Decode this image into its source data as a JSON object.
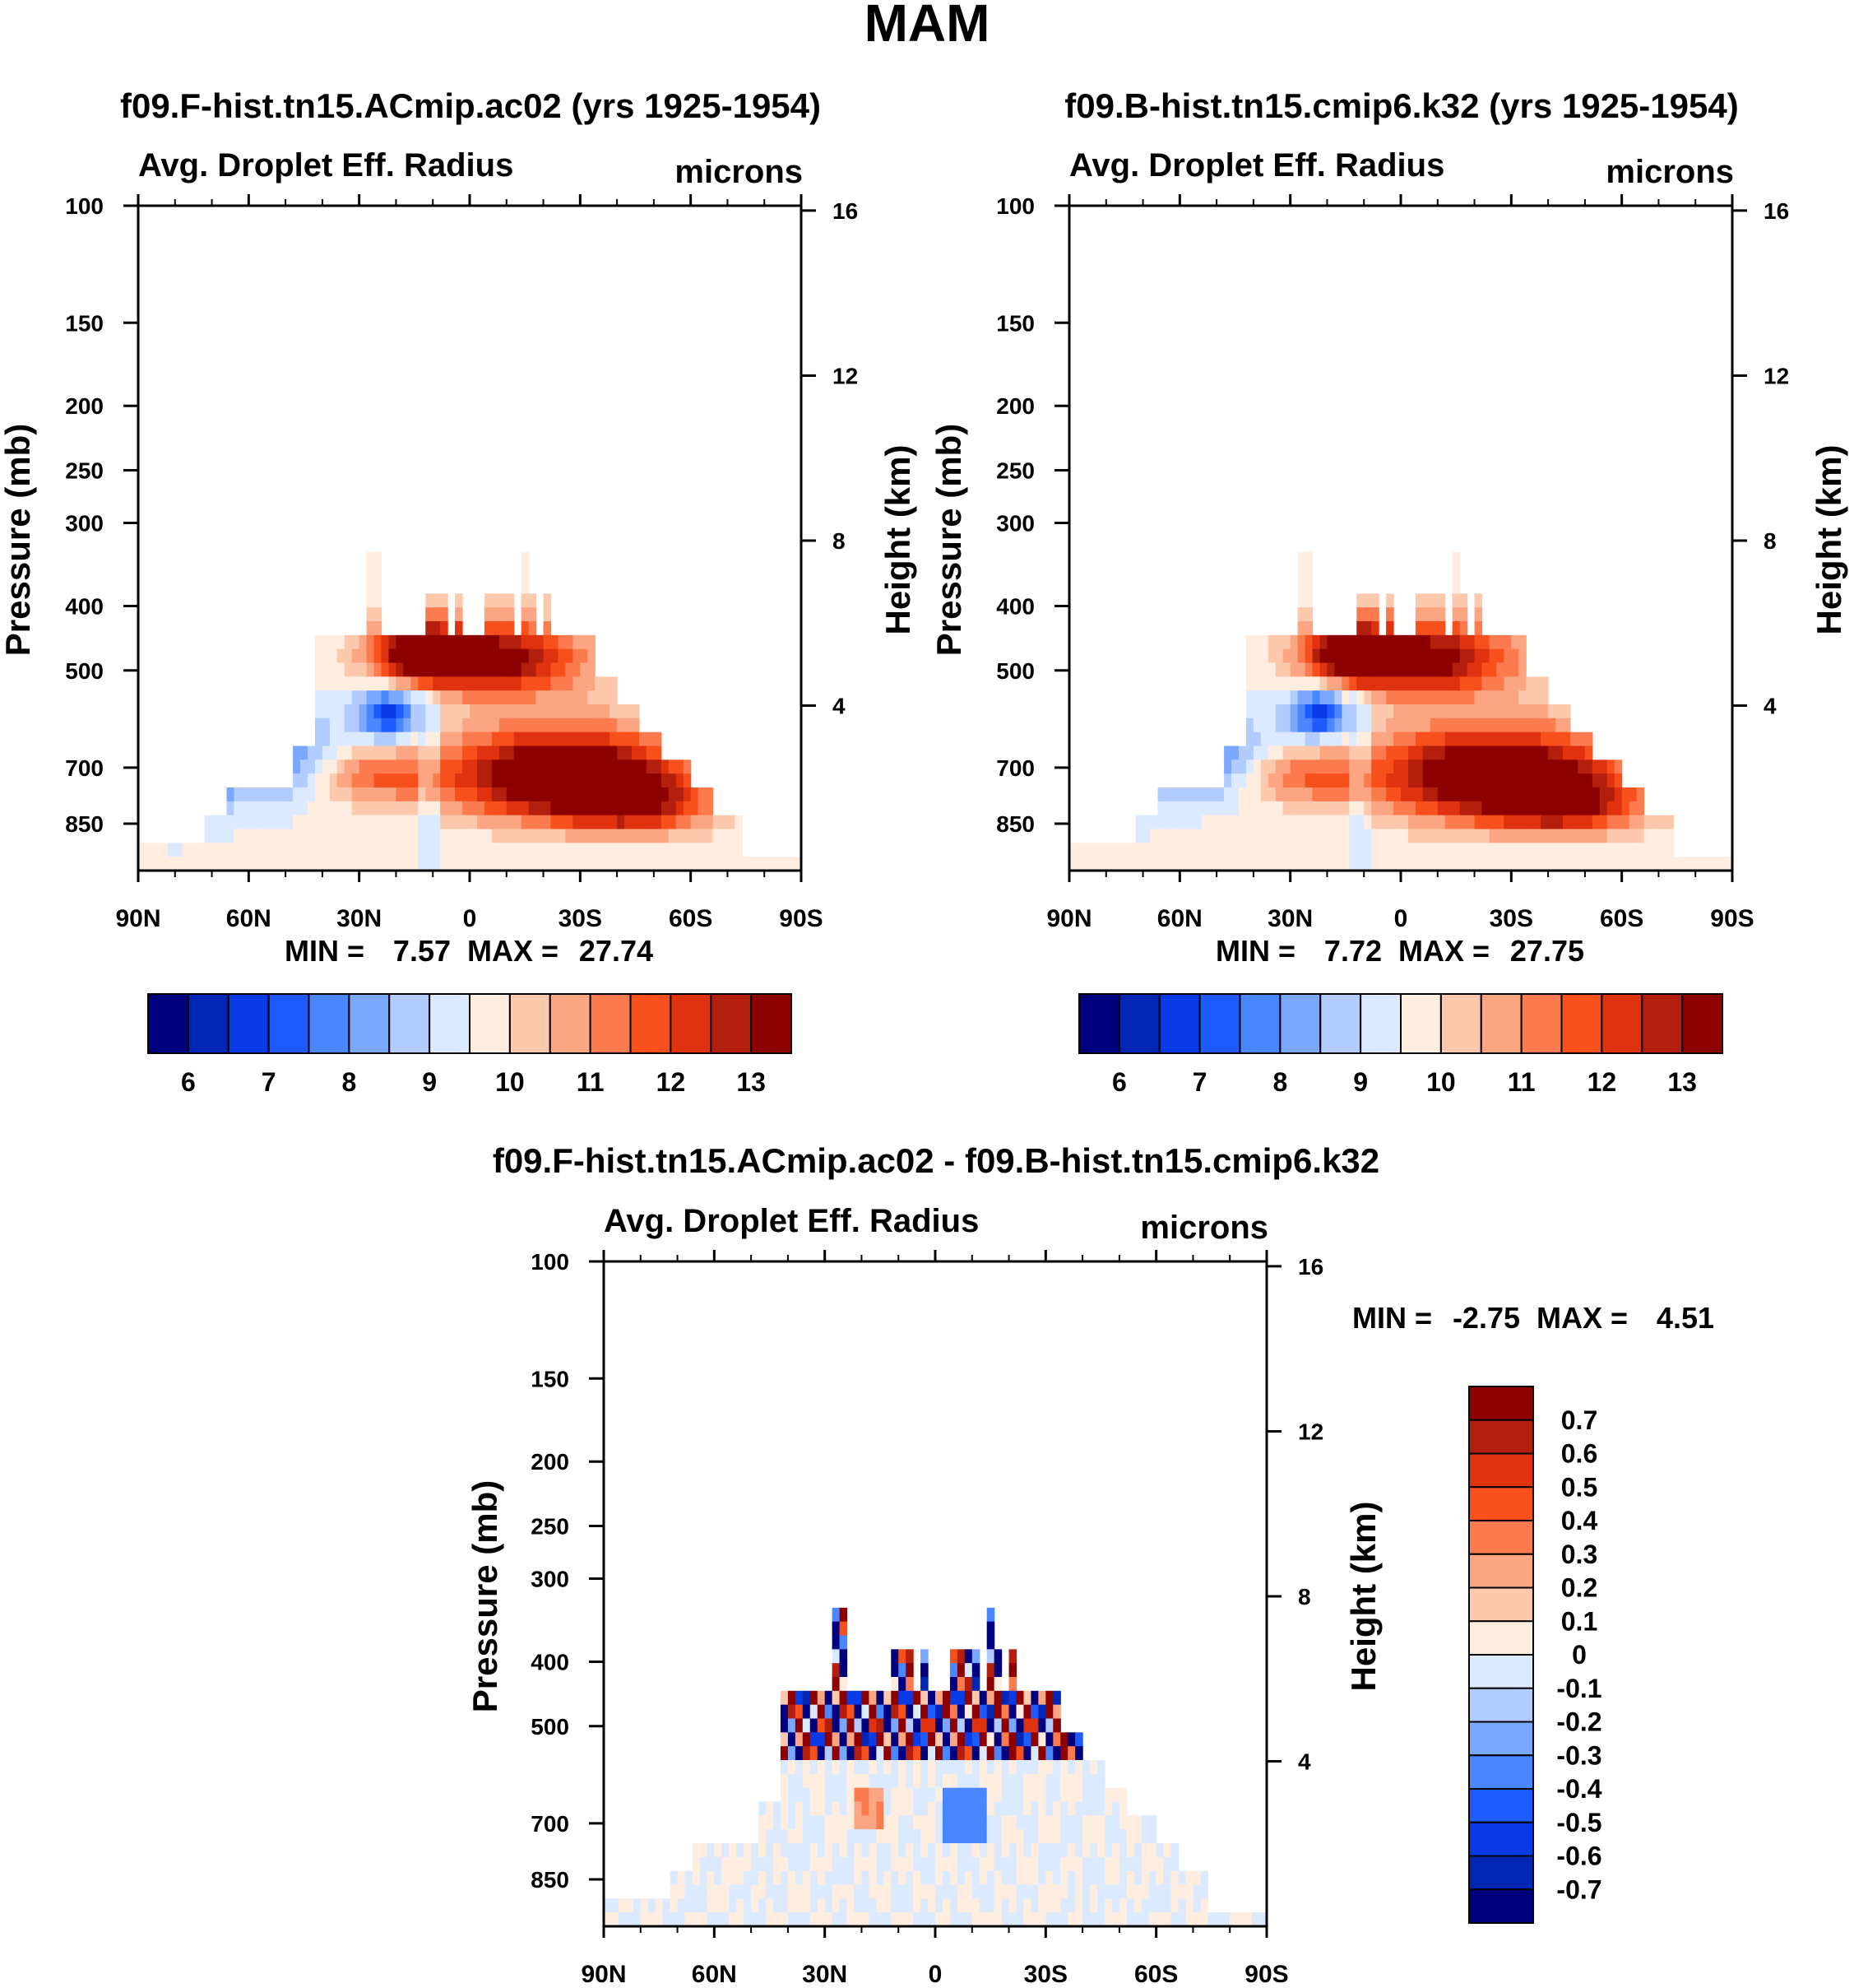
{
  "figure_title": "MAM",
  "colors": {
    "main_palette": [
      "#00007f",
      "#0026b3",
      "#0a3ae6",
      "#1f5aff",
      "#4a86ff",
      "#7ba8ff",
      "#b2ccff",
      "#dbeaff",
      "#ffeee0",
      "#fdc9ad",
      "#fca582",
      "#fb7b4e",
      "#f7501d",
      "#e0320e",
      "#b41e0c",
      "#8c0000"
    ],
    "diff_palette": [
      "#00007f",
      "#0026b3",
      "#0a3ae6",
      "#1f5aff",
      "#4a86ff",
      "#7ba8ff",
      "#b2ccff",
      "#dbeaff",
      "#ffeee0",
      "#fdc9ad",
      "#fca582",
      "#fb7b4e",
      "#f7501d",
      "#e0320e",
      "#b41e0c",
      "#8c0000"
    ],
    "empty_field": "#ffffff"
  },
  "chart_data": [
    {
      "type": "heatmap",
      "panel_title": "f09.F-hist.tn15.ACmip.ac02 (yrs 1925-1954)",
      "left_string": "Avg. Droplet Eff. Radius",
      "right_string": "microns",
      "ylabel": "Pressure (mb)",
      "ylabel_right": "Height (km)",
      "x_ticks": [
        "90N",
        "60N",
        "30N",
        "0",
        "30S",
        "60S",
        "90S"
      ],
      "y_ticks": [
        "100",
        "150",
        "200",
        "250",
        "300",
        "400",
        "500",
        "700",
        "850"
      ],
      "y_right_ticks": [
        "16",
        "12",
        "8",
        "4"
      ],
      "xlim": [
        90,
        -90
      ],
      "ylim_mb": [
        100,
        1000
      ],
      "stats": {
        "min_label": "MIN =",
        "min": "7.57",
        "max_label": "MAX =",
        "max": "27.74"
      },
      "colorbar_labels": [
        "6",
        "7",
        "8",
        "9",
        "10",
        "11",
        "12",
        "13"
      ],
      "colorbar_levels": [
        5.5,
        6,
        6.5,
        7,
        7.5,
        8,
        8.5,
        9,
        9.5,
        10,
        10.5,
        11,
        11.5,
        12,
        12.5,
        13,
        13.5
      ]
    },
    {
      "type": "heatmap",
      "panel_title": "f09.B-hist.tn15.cmip6.k32 (yrs 1925-1954)",
      "left_string": "Avg. Droplet Eff. Radius",
      "right_string": "microns",
      "ylabel": "Pressure (mb)",
      "ylabel_right": "Height (km)",
      "x_ticks": [
        "90N",
        "60N",
        "30N",
        "0",
        "30S",
        "60S",
        "90S"
      ],
      "y_ticks": [
        "100",
        "150",
        "200",
        "250",
        "300",
        "400",
        "500",
        "700",
        "850"
      ],
      "y_right_ticks": [
        "16",
        "12",
        "8",
        "4"
      ],
      "xlim": [
        90,
        -90
      ],
      "ylim_mb": [
        100,
        1000
      ],
      "stats": {
        "min_label": "MIN =",
        "min": "7.72",
        "max_label": "MAX =",
        "max": "27.75"
      },
      "colorbar_labels": [
        "6",
        "7",
        "8",
        "9",
        "10",
        "11",
        "12",
        "13"
      ],
      "colorbar_levels": [
        5.5,
        6,
        6.5,
        7,
        7.5,
        8,
        8.5,
        9,
        9.5,
        10,
        10.5,
        11,
        11.5,
        12,
        12.5,
        13,
        13.5
      ]
    },
    {
      "type": "heatmap",
      "panel_title": "f09.F-hist.tn15.ACmip.ac02 - f09.B-hist.tn15.cmip6.k32",
      "left_string": "Avg. Droplet Eff. Radius",
      "right_string": "microns",
      "ylabel": "Pressure (mb)",
      "ylabel_right": "Height (km)",
      "x_ticks": [
        "90N",
        "60N",
        "30N",
        "0",
        "30S",
        "60S",
        "90S"
      ],
      "y_ticks": [
        "100",
        "150",
        "200",
        "250",
        "300",
        "400",
        "500",
        "700",
        "850"
      ],
      "y_right_ticks": [
        "16",
        "12",
        "8",
        "4"
      ],
      "xlim": [
        90,
        -90
      ],
      "ylim_mb": [
        100,
        1000
      ],
      "stats": {
        "min_label": "MIN =",
        "min": "-2.75",
        "max_label": "MAX =",
        "max": "4.51"
      },
      "colorbar_labels": [
        "0.7",
        "0.6",
        "0.5",
        "0.4",
        "0.3",
        "0.2",
        "0.1",
        "0",
        "-0.1",
        "-0.2",
        "-0.3",
        "-0.4",
        "-0.5",
        "-0.6",
        "-0.7"
      ],
      "colorbar_levels": [
        -0.8,
        -0.7,
        -0.6,
        -0.5,
        -0.4,
        -0.3,
        -0.2,
        -0.1,
        0,
        0.1,
        0.2,
        0.3,
        0.4,
        0.5,
        0.6,
        0.7,
        0.8
      ]
    }
  ]
}
